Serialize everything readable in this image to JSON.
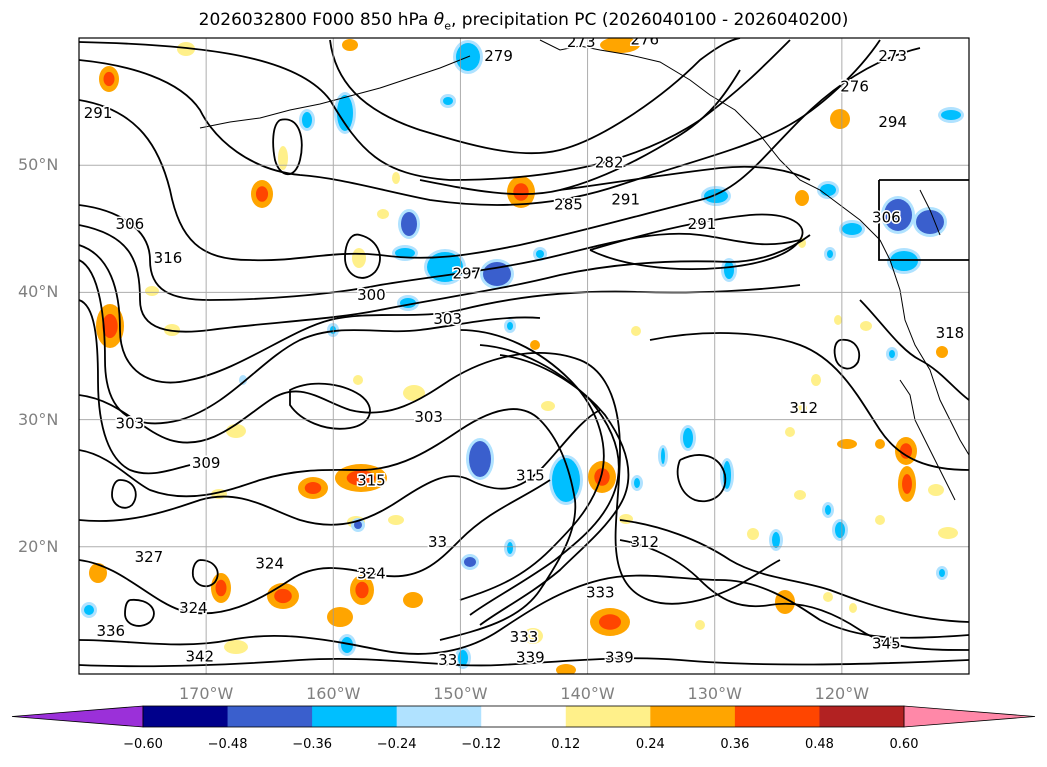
{
  "title": {
    "prefix": "2026032800 F000 850 hPa ",
    "theta_symbol": "θ",
    "theta_sub": "e",
    "suffix": ", precipitation PC (2026040100 - 2026040200)"
  },
  "map": {
    "lat_labels": [
      "50°N",
      "40°N",
      "30°N",
      "20°N"
    ],
    "lat_values": [
      50,
      40,
      30,
      20
    ],
    "lon_labels": [
      "170°W",
      "160°W",
      "150°W",
      "140°W",
      "130°W",
      "120°W"
    ],
    "lon_values": [
      -170,
      -160,
      -150,
      -140,
      -130,
      -120
    ],
    "lon_range": [
      -180,
      -110
    ],
    "lat_range": [
      10,
      60
    ],
    "contour_labels": [
      {
        "text": "279",
        "lon": -147,
        "lat": 58.2
      },
      {
        "text": "276",
        "lon": -135.5,
        "lat": 59.5
      },
      {
        "text": "273",
        "lon": -140.5,
        "lat": 59.3
      },
      {
        "text": "273",
        "lon": -116,
        "lat": 58.2
      },
      {
        "text": "276",
        "lon": -119,
        "lat": 55.8
      },
      {
        "text": "294",
        "lon": -116,
        "lat": 53.0
      },
      {
        "text": "291",
        "lon": -178.5,
        "lat": 53.7
      },
      {
        "text": "282",
        "lon": -138.3,
        "lat": 49.8
      },
      {
        "text": "285",
        "lon": -141.5,
        "lat": 46.5
      },
      {
        "text": "291",
        "lon": -137,
        "lat": 46.9
      },
      {
        "text": "291",
        "lon": -131,
        "lat": 45.0
      },
      {
        "text": "306",
        "lon": -116.5,
        "lat": 45.5
      },
      {
        "text": "306",
        "lon": -176,
        "lat": 45.0
      },
      {
        "text": "316",
        "lon": -173,
        "lat": 42.3
      },
      {
        "text": "297",
        "lon": -149.5,
        "lat": 41.1
      },
      {
        "text": "300",
        "lon": -157,
        "lat": 39.4
      },
      {
        "text": "303",
        "lon": -151,
        "lat": 37.5
      },
      {
        "text": "318",
        "lon": -111.5,
        "lat": 36.4
      },
      {
        "text": "303",
        "lon": -176,
        "lat": 29.3
      },
      {
        "text": "303",
        "lon": -152.5,
        "lat": 29.8
      },
      {
        "text": "312",
        "lon": -123,
        "lat": 30.5
      },
      {
        "text": "309",
        "lon": -170,
        "lat": 26.2
      },
      {
        "text": "315",
        "lon": -157,
        "lat": 24.8
      },
      {
        "text": "315",
        "lon": -144.5,
        "lat": 25.2
      },
      {
        "text": "312",
        "lon": -135.5,
        "lat": 20.0
      },
      {
        "text": "327",
        "lon": -174.5,
        "lat": 18.8
      },
      {
        "text": "324",
        "lon": -165,
        "lat": 18.3
      },
      {
        "text": "324",
        "lon": -157,
        "lat": 17.5
      },
      {
        "text": "333",
        "lon": -139,
        "lat": 16.0
      },
      {
        "text": "324",
        "lon": -171,
        "lat": 14.8
      },
      {
        "text": "336",
        "lon": -177.5,
        "lat": 13.0
      },
      {
        "text": "333",
        "lon": -145,
        "lat": 12.5
      },
      {
        "text": "342",
        "lon": -170.5,
        "lat": 11.0
      },
      {
        "text": "339",
        "lon": -144.5,
        "lat": 10.9
      },
      {
        "text": "339",
        "lon": -137.5,
        "lat": 10.9
      },
      {
        "text": "33",
        "lon": -151,
        "lat": 10.7
      },
      {
        "text": "345",
        "lon": -116.5,
        "lat": 12.0
      },
      {
        "text": "33",
        "lon": -151.8,
        "lat": 20.0
      }
    ]
  },
  "colorbar": {
    "tick_labels": [
      "−0.60",
      "−0.48",
      "−0.36",
      "−0.24",
      "−0.12",
      "0.12",
      "0.24",
      "0.36",
      "0.48",
      "0.60"
    ],
    "segment_colors": [
      "#9b30d9",
      "#00008b",
      "#3a5fcd",
      "#00bfff",
      "#b0e2ff",
      "#ffffff",
      "#fff08a",
      "#ffa500",
      "#ff4500",
      "#b22222",
      "#ff88a8",
      "#ff88a8"
    ],
    "under_color": "#9b30d9",
    "over_color": "#ff88a8"
  }
}
